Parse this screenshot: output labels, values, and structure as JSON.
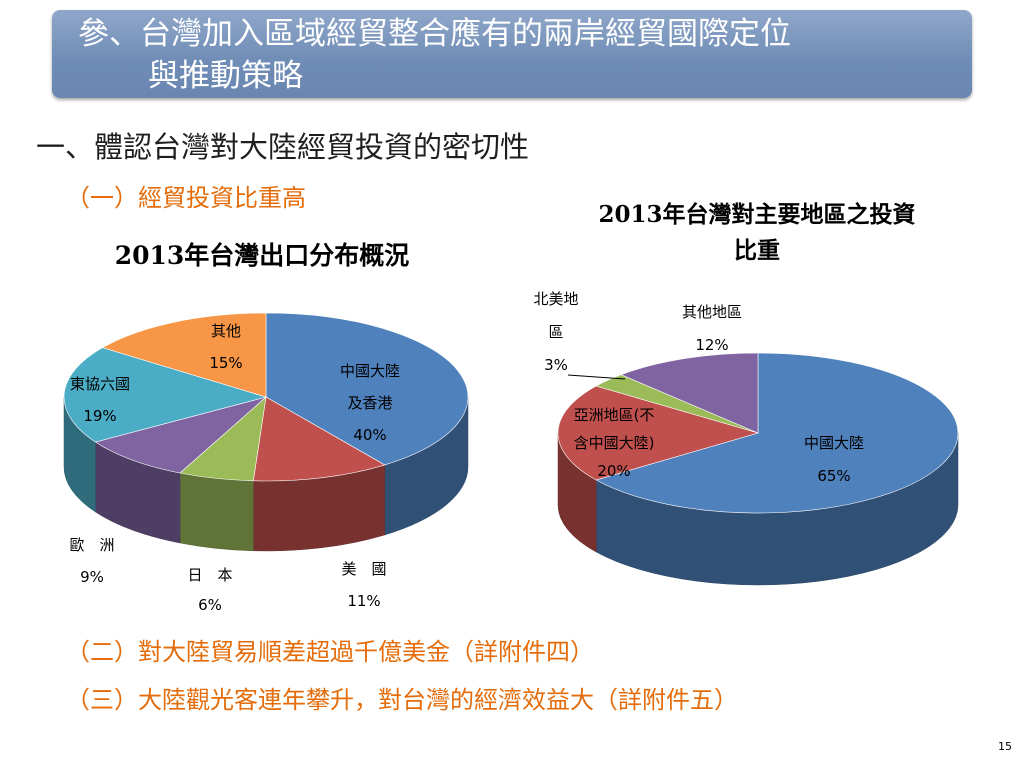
{
  "slide": {
    "title_line1": "參、台灣加入區域經貿整合應有的兩岸經貿國際定位",
    "title_line2": "與推動策略",
    "heading": "一、體認台灣對大陸經貿投資的密切性",
    "sub1": "（一）經貿投資比重高",
    "sub2": "（二）對大陸貿易順差超過千億美金（詳附件四）",
    "sub3": "（三）大陸觀光客連年攀升，對台灣的經濟效益大（詳附件五）",
    "page_number": "15"
  },
  "chart_data": [
    {
      "type": "pie",
      "title": "2013年台灣出口分布概況",
      "slices": [
        {
          "label": [
            "中國大陸",
            "及香港"
          ],
          "value": 40,
          "value_label": "40%",
          "color": "#4f81bd"
        },
        {
          "label": [
            "美　國"
          ],
          "value": 11,
          "value_label": "11%",
          "color": "#c0504d"
        },
        {
          "label": [
            "日　本"
          ],
          "value": 6,
          "value_label": "6%",
          "color": "#9bbb59"
        },
        {
          "label": [
            "歐　洲"
          ],
          "value": 9,
          "value_label": "9%",
          "color": "#8064a2"
        },
        {
          "label": [
            "東協六國"
          ],
          "value": 19,
          "value_label": "19%",
          "color": "#4bacc6"
        },
        {
          "label": [
            "其他"
          ],
          "value": 15,
          "value_label": "15%",
          "color": "#f79646"
        }
      ]
    },
    {
      "type": "pie",
      "title": [
        "2013年台灣對主要地區之投資",
        "比重"
      ],
      "slices": [
        {
          "label": [
            "中國大陸"
          ],
          "value": 65,
          "value_label": "65%",
          "color": "#4f81bd"
        },
        {
          "label": [
            "亞洲地區(不",
            "含中國大陸)"
          ],
          "value": 20,
          "value_label": "20%",
          "color": "#c0504d"
        },
        {
          "label": [
            "北美地",
            "區"
          ],
          "value": 3,
          "value_label": "3%",
          "color": "#9bbb59"
        },
        {
          "label": [
            "其他地區"
          ],
          "value": 12,
          "value_label": "12%",
          "color": "#8064a2"
        }
      ]
    }
  ]
}
